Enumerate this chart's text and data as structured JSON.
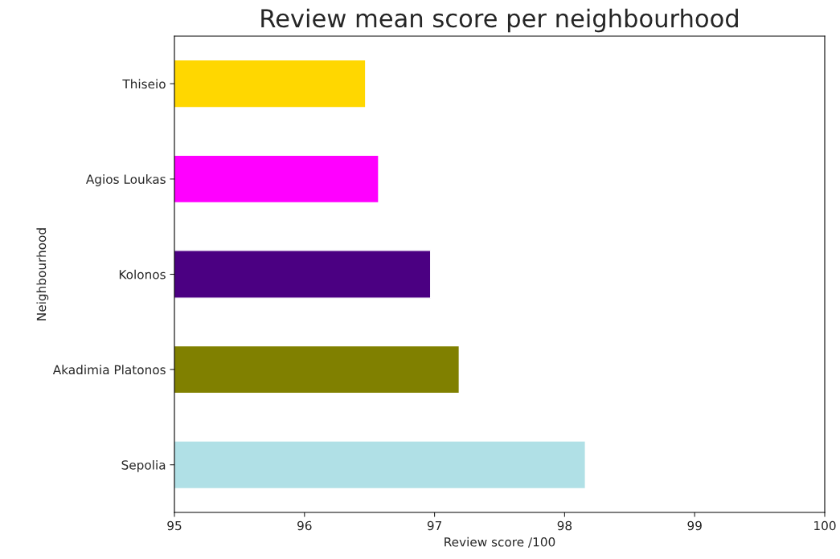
{
  "chart_data": {
    "type": "bar",
    "orientation": "horizontal",
    "title": "Review mean score per neighbourhood",
    "xlabel": "Review score /100",
    "ylabel": "Neighbourhood",
    "categories": [
      "Thiseio",
      "Agios Loukas",
      "Kolonos",
      "Akadimia Platonos",
      "Sepolia"
    ],
    "values": [
      96.47,
      96.57,
      96.97,
      97.19,
      98.16
    ],
    "colors": [
      "#ffd700",
      "#ff00ff",
      "#4b0082",
      "#808000",
      "#b0e0e6"
    ],
    "xlim": [
      95,
      100
    ],
    "xticks": [
      95,
      96,
      97,
      98,
      99,
      100
    ],
    "grid": false
  }
}
